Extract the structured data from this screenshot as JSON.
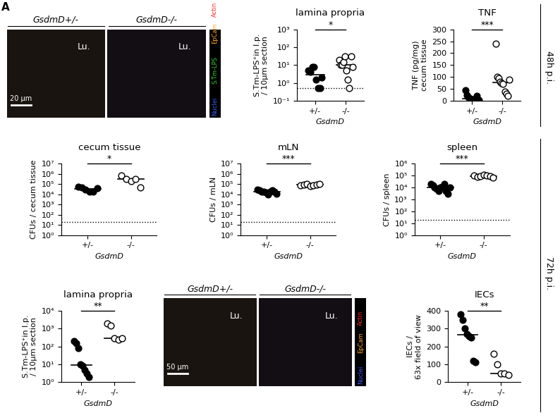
{
  "panel_letter": "A",
  "side_labels": [
    "48h p.i.",
    "72h p.i."
  ],
  "images": [
    {
      "panels": [
        {
          "title": "GsdmD+/-",
          "lumen": "Lu."
        },
        {
          "title": "GsdmD-/-",
          "lumen": "Lu."
        }
      ],
      "scale_bar": "20 µm",
      "channels": [
        {
          "name": "Nuclei",
          "color": "#3a5bff"
        },
        {
          "name": "S.Tm-LPS",
          "color": "#33d633"
        },
        {
          "name": "EpCam",
          "color": "#ffa726"
        },
        {
          "name": "Actin",
          "color": "#ff2a2a"
        }
      ]
    },
    {
      "panels": [
        {
          "title": "GsdmD+/-",
          "lumen": "Lu."
        },
        {
          "title": "GsdmD-/-",
          "lumen": "Lu."
        }
      ],
      "scale_bar": "50 µm",
      "channels": [
        {
          "name": "Nuclei",
          "color": "#3a5bff"
        },
        {
          "name": "EpCam",
          "color": "#ffa726"
        },
        {
          "name": "Actin",
          "color": "#ff2a2a"
        }
      ]
    }
  ],
  "chart_data": [
    {
      "type": "scatter",
      "title": "lamina propria",
      "ylabel": "S.Tm-LPS⁺in l.p.\n/ 10µm section",
      "xlabel": "GsdmD",
      "categories": [
        "+/-",
        "-/-"
      ],
      "colors": [
        "#000000",
        "#ffffff"
      ],
      "values": [
        [
          5,
          4,
          8,
          8,
          1.5,
          0.5,
          0.5,
          2
        ],
        [
          20,
          10,
          10,
          15,
          30,
          5,
          1.5,
          0.5,
          30,
          8
        ]
      ],
      "log": "y",
      "ylim": [
        0.1,
        1000
      ],
      "yticks": [
        {
          "value": 0.1,
          "label": "10⁻¹"
        },
        {
          "value": 1,
          "label": "10⁰"
        },
        {
          "value": 10,
          "label": "10¹"
        },
        {
          "value": 100,
          "label": "10²"
        },
        {
          "value": 1000,
          "label": "10³"
        }
      ],
      "detection_limit": 0.5,
      "significance": "*"
    },
    {
      "type": "scatter",
      "title": "TNF",
      "ylabel": "TNF (pg/mg)\ncecum tissue",
      "xlabel": "GsdmD",
      "categories": [
        "+/-",
        "-/-"
      ],
      "colors": [
        "#000000",
        "#ffffff"
      ],
      "values": [
        [
          45,
          25,
          15,
          10,
          5,
          5,
          5,
          20,
          2
        ],
        [
          240,
          100,
          95,
          80,
          75,
          70,
          40,
          30,
          20,
          90
        ]
      ],
      "ylim": [
        0,
        300
      ],
      "yticks": [
        0,
        50,
        100,
        150,
        200,
        250,
        300
      ],
      "significance": "***"
    },
    {
      "type": "scatter",
      "title": "cecum tissue",
      "ylabel": "CFUs / cecum tissue",
      "xlabel": "GsdmD",
      "categories": [
        "+/-",
        "-/-"
      ],
      "colors": [
        "#000000",
        "#ffffff"
      ],
      "values": [
        [
          60000,
          50000,
          30000,
          20000,
          20000,
          40000
        ],
        [
          700000,
          300000,
          200000,
          300000,
          50000
        ]
      ],
      "log": "y",
      "ylim": [
        1,
        10000000
      ],
      "yticks": [
        {
          "value": 1,
          "label": "10⁰"
        },
        {
          "value": 10,
          "label": "10¹"
        },
        {
          "value": 100,
          "label": "10²"
        },
        {
          "value": 1000,
          "label": "10³"
        },
        {
          "value": 10000,
          "label": "10⁴"
        },
        {
          "value": 100000,
          "label": "10⁵"
        },
        {
          "value": 1000000,
          "label": "10⁶"
        },
        {
          "value": 10000000,
          "label": "10⁷"
        }
      ],
      "detection_limit": 20,
      "significance": "*"
    },
    {
      "type": "scatter",
      "title": "mLN",
      "ylabel": "CFUs / mLN",
      "xlabel": "GsdmD",
      "categories": [
        "+/-",
        "-/-"
      ],
      "colors": [
        "#000000",
        "#ffffff"
      ],
      "values": [
        [
          30000,
          25000,
          20000,
          20000,
          15000,
          10000,
          20000,
          25000,
          18000,
          12000
        ],
        [
          80000,
          90000,
          100000,
          70000,
          80000,
          90000,
          100000
        ]
      ],
      "log": "y",
      "ylim": [
        1,
        10000000
      ],
      "yticks": [
        {
          "value": 1,
          "label": "10⁰"
        },
        {
          "value": 10,
          "label": "10¹"
        },
        {
          "value": 100,
          "label": "10²"
        },
        {
          "value": 1000,
          "label": "10³"
        },
        {
          "value": 10000,
          "label": "10⁴"
        },
        {
          "value": 100000,
          "label": "10⁵"
        },
        {
          "value": 1000000,
          "label": "10⁶"
        },
        {
          "value": 10000000,
          "label": "10⁷"
        }
      ],
      "detection_limit": 20,
      "significance": "***"
    },
    {
      "type": "scatter",
      "title": "spleen",
      "ylabel": "CFUs / spleen",
      "xlabel": "GsdmD",
      "categories": [
        "+/-",
        "-/-"
      ],
      "colors": [
        "#000000",
        "#ffffff"
      ],
      "values": [
        [
          20000,
          15000,
          10000,
          8000,
          5000,
          10000,
          12000,
          20000,
          5000,
          3000,
          10000
        ],
        [
          100000,
          80000,
          90000,
          120000,
          100000,
          90000,
          70000
        ]
      ],
      "log": "y",
      "ylim": [
        1,
        1000000
      ],
      "yticks": [
        {
          "value": 1,
          "label": "10⁰"
        },
        {
          "value": 10,
          "label": "10¹"
        },
        {
          "value": 100,
          "label": "10²"
        },
        {
          "value": 1000,
          "label": "10³"
        },
        {
          "value": 10000,
          "label": "10⁴"
        },
        {
          "value": 100000,
          "label": "10⁵"
        },
        {
          "value": 1000000,
          "label": "10⁶"
        }
      ],
      "detection_limit": 20,
      "significance": "***"
    },
    {
      "type": "scatter",
      "title": "lamina propria",
      "ylabel": "S.Tm-LPS⁺in l.p.\n/ 10µm section",
      "xlabel": "GsdmD",
      "categories": [
        "+/-",
        "-/-"
      ],
      "colors": [
        "#000000",
        "#ffffff"
      ],
      "values": [
        [
          200,
          150,
          80,
          10,
          8,
          5,
          3,
          2
        ],
        [
          2000,
          1500,
          300,
          250,
          300
        ]
      ],
      "log": "y",
      "ylim": [
        1,
        10000
      ],
      "yticks": [
        {
          "value": 1,
          "label": "10⁰"
        },
        {
          "value": 10,
          "label": "10¹"
        },
        {
          "value": 100,
          "label": "10²"
        },
        {
          "value": 1000,
          "label": "10³"
        },
        {
          "value": 10000,
          "label": "10⁴"
        }
      ],
      "significance": "**"
    },
    {
      "type": "scatter",
      "title": "IECs",
      "ylabel": "IECs /\n63x field of view",
      "xlabel": "GsdmD",
      "categories": [
        "+/-",
        "-/-"
      ],
      "colors": [
        "#000000",
        "#ffffff"
      ],
      "values": [
        [
          380,
          350,
          300,
          270,
          260,
          250,
          120,
          110
        ],
        [
          160,
          100,
          50,
          50,
          40
        ]
      ],
      "ylim": [
        0,
        400
      ],
      "yticks": [
        0,
        100,
        200,
        300,
        400
      ],
      "significance": "**"
    }
  ]
}
